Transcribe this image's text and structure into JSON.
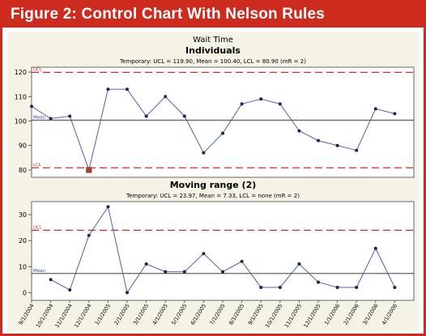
{
  "figure_title": "Figure 2: Control Chart With Nelson Rules",
  "colors": {
    "brand": "#cc2b1d",
    "panel_bg": "#f5f2e6",
    "series_line": "#3b4fa8",
    "limit_line": "#d42a2a",
    "flag_marker": "#c0392b"
  },
  "chart_data": [
    {
      "type": "line",
      "suptitle": "Wait Time",
      "title": "Individuals",
      "subtitle": "Temporary: UCL = 119.90, Mean = 100.40, LCL = 80.90 (mR = 2)",
      "x": [
        "9/1/2004",
        "10/1/2004",
        "11/1/2004",
        "12/1/2004",
        "1/1/2005",
        "2/1/2005",
        "3/1/2005",
        "4/1/2005",
        "5/1/2005",
        "6/1/2005",
        "7/1/2005",
        "8/1/2005",
        "9/1/2005",
        "10/1/2005",
        "11/1/2005",
        "12/1/2005",
        "1/1/2006",
        "2/1/2006",
        "3/1/2006",
        "4/1/2006"
      ],
      "xlabels": [
        "9/1/2004",
        "10/1/2004",
        "11/1/2004",
        "12/1/2004",
        "1/1/2005",
        "2/1/2005",
        "3/1/2005",
        "4/1/2005",
        "5/1/2005",
        "6/1/2005",
        "7/1/2005",
        "8/1/2005",
        "9/1/2005",
        "10/1/2005",
        "11/1/2005",
        "12/1/2005",
        "1/1/2006",
        "2/1/2006",
        "3/1/2006",
        "4/1/2006"
      ],
      "x_note": "leading point at the left edge precedes 9/1/2004",
      "series": [
        {
          "values": [
            106,
            101,
            102,
            80,
            113,
            113,
            102,
            110,
            102,
            87,
            95,
            107,
            109,
            107,
            96,
            92,
            90,
            88,
            105,
            103
          ]
        }
      ],
      "lead_value": 106,
      "values_all": [
        106,
        101,
        102,
        80,
        113,
        113,
        102,
        110,
        102,
        87,
        95,
        107,
        109,
        107,
        96,
        92,
        90,
        88,
        105,
        103
      ],
      "flagged_points": [
        3
      ],
      "ucl": 119.9,
      "mean": 100.4,
      "lcl": 80.9,
      "ucl_label": "UCL",
      "mean_label": "Mean",
      "lcl_label": "LCL",
      "ylim": [
        77,
        122
      ],
      "yticks": [
        80,
        90,
        100,
        110,
        120
      ]
    },
    {
      "type": "line",
      "title": "Moving range (2)",
      "subtitle": "Temporary: UCL = 23.97, Mean = 7.33, LCL = none (mR = 2)",
      "values_all": [
        5,
        1,
        22,
        33,
        0,
        11,
        8,
        8,
        15,
        8,
        12,
        2,
        2,
        11,
        4,
        2,
        2,
        17,
        2
      ],
      "ucl": 23.97,
      "mean": 7.33,
      "ucl_label": "UCL",
      "mean_label": "Mean",
      "ylim": [
        -3,
        35
      ],
      "yticks": [
        0,
        10,
        20,
        30
      ]
    }
  ]
}
